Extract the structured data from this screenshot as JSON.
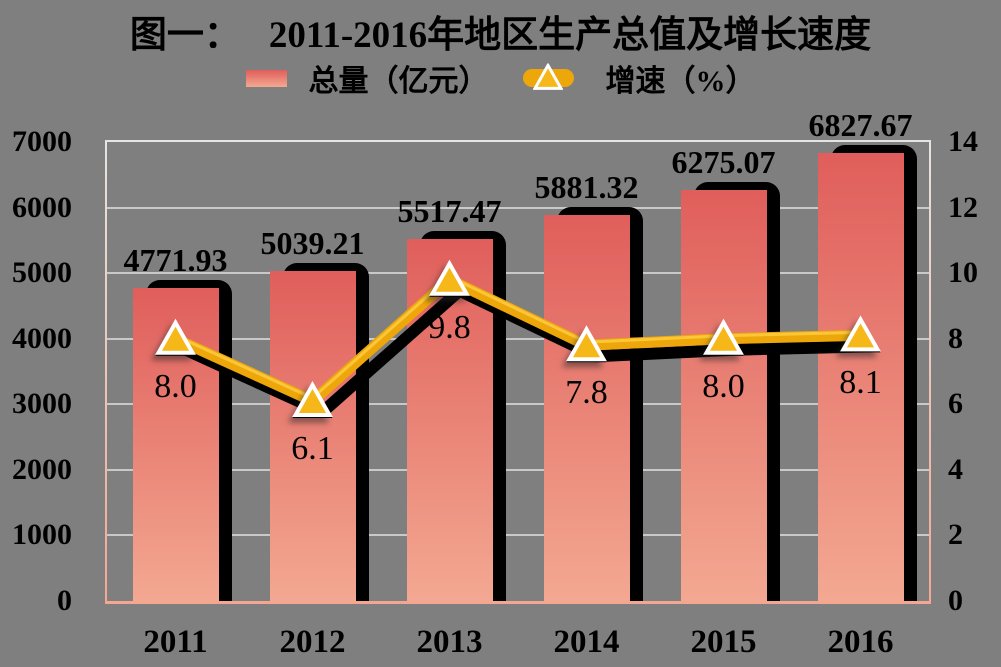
{
  "title": {
    "prefix": "图一：",
    "text": "2011-2016年地区生产总值及增长速度"
  },
  "legend": [
    {
      "label": "总量（亿元）",
      "swatch": "bar-gradient"
    },
    {
      "label": "增速（%）",
      "swatch": "line-with-triangle-marker"
    }
  ],
  "chart_data": {
    "type": "combo-bar-line",
    "title": "图一：  2011-2016年地区生产总值及增长速度",
    "categories": [
      "2011",
      "2012",
      "2013",
      "2014",
      "2015",
      "2016"
    ],
    "series": [
      {
        "name": "总量（亿元）",
        "type": "bar",
        "axis": "left",
        "values": [
          4771.93,
          5039.21,
          5517.47,
          5881.32,
          6275.07,
          6827.67
        ],
        "labels": [
          "4771.93",
          "5039.21",
          "5517.47",
          "5881.32",
          "6275.07",
          "6827.67"
        ]
      },
      {
        "name": "增速（%）",
        "type": "line",
        "axis": "right",
        "values": [
          8.0,
          6.1,
          9.8,
          7.8,
          8.0,
          8.1
        ],
        "labels": [
          "8.0",
          "6.1",
          "9.8",
          "7.8",
          "8.0",
          "8.1"
        ]
      }
    ],
    "left_axis": {
      "min": 0,
      "max": 7000,
      "step": 1000,
      "ticks": [
        "0",
        "1000",
        "2000",
        "3000",
        "4000",
        "5000",
        "6000",
        "7000"
      ]
    },
    "right_axis": {
      "min": 0,
      "max": 14,
      "step": 2,
      "ticks": [
        "0",
        "2",
        "4",
        "6",
        "8",
        "10",
        "12",
        "14"
      ]
    },
    "grid": true,
    "legend_position": "top"
  },
  "colors": {
    "background": "#7f7f7f",
    "bar_top": "#e05e5b",
    "bar_bottom": "#f3a892",
    "bar_shadow": "#000000",
    "line": "#eda70a",
    "line_highlight": "#ffd24a",
    "line_shadow": "#000000",
    "marker_fill": "#f6b719",
    "marker_border": "#ffffff",
    "gridline": "#c9c9c9",
    "frame_top": "#e6e4e1",
    "frame_bottom": "#f4a690",
    "text": "#000000"
  }
}
